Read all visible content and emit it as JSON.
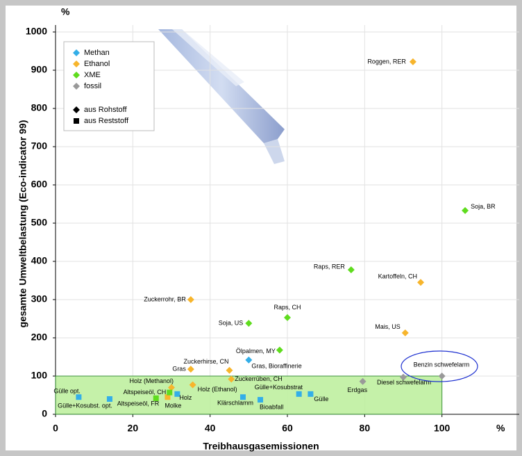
{
  "chart_data": {
    "type": "scatter",
    "x_label": "Treibhausgasemissionen",
    "y_label": "gesamte Umweltbelastung (Eco-indicator 99)",
    "x_unit": "%",
    "y_unit": "%",
    "xlim": [
      0,
      120
    ],
    "ylim": [
      0,
      1000
    ],
    "xticks": [
      0,
      20,
      40,
      60,
      80,
      100
    ],
    "yticks": [
      0,
      100,
      200,
      300,
      400,
      500,
      600,
      700,
      800,
      900,
      1000
    ],
    "grid": true,
    "legend": "top-left",
    "series": [
      {
        "name": "Methan",
        "color": "#33aee8",
        "x": [
          6,
          14,
          31.5,
          48.5,
          53,
          63,
          66,
          50
        ],
        "values": [
          45,
          40,
          53,
          45,
          38,
          53,
          53,
          142
        ],
        "labels": [
          "Gülle opt.",
          "Gülle+Kosubst. opt.",
          "Holz",
          "Klärschlamm",
          "Bioabfall",
          "Gülle+Kosubstrat",
          "Gülle",
          "Gras, Bioraffinerie"
        ],
        "markers": [
          "square",
          "square",
          "square",
          "square",
          "square",
          "square",
          "square",
          "diamond"
        ]
      },
      {
        "name": "Ethanol",
        "color": "#f7b52c",
        "x": [
          92.5,
          94.5,
          90.5,
          35,
          45,
          45.5,
          35,
          35.5,
          29,
          30
        ],
        "values": [
          922,
          345,
          213,
          300,
          115,
          92,
          118,
          77,
          45,
          70
        ],
        "labels": [
          "Roggen, RER",
          "Kartoffeln, CH",
          "Mais, US",
          "Zuckerrohr, BR",
          "Zuckerhirse, CN",
          "Zuckerrüben, CH",
          "Gras",
          "Holz (Ethanol)",
          "Molke",
          "Holz (Methanol)"
        ],
        "markers": [
          "diamond",
          "diamond",
          "diamond",
          "diamond",
          "diamond",
          "diamond",
          "diamond",
          "diamond",
          "square",
          "diamond"
        ]
      },
      {
        "name": "XME",
        "color": "#5fdc1e",
        "x": [
          106,
          76.5,
          60,
          50,
          58,
          29.5,
          26
        ],
        "values": [
          533,
          378,
          253,
          238,
          168,
          57,
          42
        ],
        "labels": [
          "Soja, BR",
          "Raps, RER",
          "Raps, CH",
          "Soja, US",
          "Ölpalmen, MY",
          "Altspeiseöl, CH",
          "Altspeiseöl, FR"
        ],
        "markers": [
          "diamond",
          "diamond",
          "diamond",
          "diamond",
          "diamond",
          "square",
          "square"
        ]
      },
      {
        "name": "fossil",
        "color": "#999999",
        "x": [
          79.5,
          90,
          100
        ],
        "values": [
          86,
          97,
          100
        ],
        "labels": [
          "Erdgas",
          "Diesel schwefelarm",
          "Benzin schwefelarm"
        ],
        "markers": [
          "diamond",
          "diamond",
          "diamond"
        ]
      }
    ],
    "marker_legend": [
      {
        "name": "aus Rohstoff",
        "marker": "diamond"
      },
      {
        "name": "aus Reststoff",
        "marker": "square"
      }
    ]
  }
}
